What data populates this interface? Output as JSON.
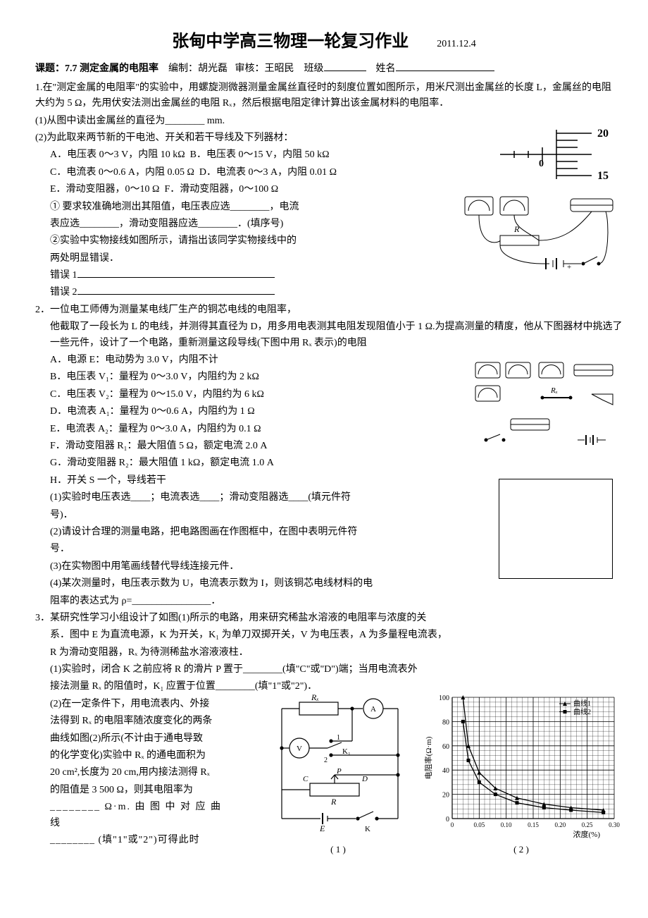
{
  "header": {
    "title": "张甸中学高三物理一轮复习作业",
    "date": "2011.12.4",
    "topic_label": "课题：7.7 测定金属的电阻率",
    "author_label": "编制：",
    "author": "胡光磊",
    "reviewer_label": "审核：",
    "reviewer": "王昭民",
    "class_label": "班级",
    "name_label": "姓名"
  },
  "q1": {
    "intro": "1.在\"测定金属的电阻率\"的实验中，用螺旋测微器测量金属丝直径时的刻度位置如图所示，用米尺测出金属丝的长度 L，金属丝的电阻大约为 5 Ω，先用伏安法测出金属丝的电阻 Rₓ，然后根据电阻定律计算出该金属材料的电阻率．",
    "p1": "(1)从图中读出金属丝的直径为________ mm.",
    "p2_intro": "(2)为此取来两节新的干电池、开关和若干导线及下列器材：",
    "optA": "A．电压表 0～3 V，内阻 10 kΩ",
    "optB": "B．电压表 0～15 V，内阻 50 kΩ",
    "optC": "C．电流表 0～0.6 A，内阻 0.05 Ω",
    "optD": "D．电流表 0～3 A，内阻 0.01 Ω",
    "optE": "E．滑动变阻器，0～10 Ω",
    "optF": "F．滑动变阻器，0～100 Ω",
    "sub1_a": "① 要求较准确地测出其阻值，电压表应选________，电流",
    "sub1_b": "表应选________，滑动变阻器应选________．(填序号)",
    "sub2_a": "②实验中实物接线如图所示，请指出该同学实物接线中的",
    "sub2_b": "两处明显错误．",
    "err1_label": "错误 1",
    "err2_label": "错误 2",
    "micrometer": {
      "top_tick": "20",
      "bottom_tick": "15",
      "main_scale": "0",
      "line_color": "#000000",
      "bg": "#ffffff"
    },
    "circuit_img": {
      "label_R": "R",
      "bg": "#ffffff",
      "stroke": "#000000"
    }
  },
  "q2": {
    "intro_a": "2．一位电工师傅为测量某电线厂生产的铜芯电线的电阻率，",
    "intro_b": "他截取了一段长为 L 的电线，并测得其直径为 D，用多用电表测其电阻发现阻值小于 1 Ω.为提高测量的精度，他从下图器材中挑选了一些元件，设计了一个电路，重新测量这段导线(下图中用 Rₓ 表示)的电阻",
    "optA": "A．电源 E：电动势为 3.0 V，内阻不计",
    "optB": "B．电压表 V₁：量程为 0～3.0 V，内阻约为 2 kΩ",
    "optC": "C．电压表 V₂：量程为 0～15.0 V，内阻约为 6 kΩ",
    "optD": "D．电流表 A₁：量程为 0～0.6 A，内阻约为 1 Ω",
    "optE": "E．电流表 A₂：量程为 0～3.0 A，内阻约为 0.1 Ω",
    "optF": "F．滑动变阻器 R₁：最大阻值 5 Ω，额定电流 2.0 A",
    "optG": "G．滑动变阻器 R₂：最大阻值 1 kΩ，额定电流 1.0 A",
    "optH": "H．开关 S 一个，导线若干",
    "p1_a": "(1)实验时电压表选____；电流表选____；滑动变阻器选____(填元件符",
    "p1_b": "号)．",
    "p2_a": "(2)请设计合理的测量电路，把电路图画在作图框中，在图中表明元件符",
    "p2_b": "号．",
    "p3": "(3)在实物图中用笔画线替代导线连接元件．",
    "p4_a": "(4)某次测量时，电压表示数为 U，电流表示数为 I，则该铜芯电线材料的电",
    "p4_b": "阻率的表达式为 ρ=________________．",
    "components_labels": {
      "rx": "Rₓ"
    }
  },
  "q3": {
    "intro_a": "3．某研究性学习小组设计了如图(1)所示的电路，用来研究稀盐水溶液的电阻率与浓度的关",
    "intro_b": "系．图中 E 为直流电源，K 为开关，K₁ 为单刀双掷开关，V 为电压表，A 为多量程电流表，",
    "intro_c": "R 为滑动变阻器，Rₓ 为待测稀盐水溶液液柱．",
    "p1_a": "(1)实验时，闭合 K 之前应将 R 的滑片 P 置于________(填\"C\"或\"D\")端；当用电流表外",
    "p1_b": "接法测量 Rₓ 的阻值时，K₁ 应置于位置________(填\"1\"或\"2\")．",
    "p2_a": "(2)在一定条件下，用电流表内、外接",
    "p2_b": "法得到 Rₓ 的电阻率随浓度变化的两条",
    "p2_c": "曲线如图(2)所示(不计由于通电导致",
    "p2_d": "的化学变化)实验中 Rₓ 的通电面积为",
    "p2_e": "20 cm²,长度为 20 cm,用内接法测得 Rₓ",
    "p2_f": "的阻值是 3 500 Ω，则其电阻率为",
    "p2_g": "________ Ω·m. 由 图 中 对 应 曲 线",
    "p2_h": "________ (填\"1\"或\"2\")可得此时",
    "circuit": {
      "caption": "( 1 )",
      "labels": {
        "rx": "Rₓ",
        "a": "A",
        "v": "V",
        "k1": "K₁",
        "one": "1",
        "two": "2",
        "c": "C",
        "p": "P",
        "d": "D",
        "r": "R",
        "e": "E",
        "k": "K"
      },
      "stroke": "#000000"
    },
    "chart": {
      "caption": "( 2 )",
      "ylabel": "电阻率(Ω·m)",
      "xlabel": "浓度(%)",
      "legend": [
        "曲线1",
        "曲线2"
      ],
      "ylim": [
        0,
        100
      ],
      "ytick_step": 20,
      "xlim": [
        0,
        0.3
      ],
      "xtick_step": 0.05,
      "yticks": [
        0,
        20,
        40,
        60,
        80,
        100
      ],
      "xticks": [
        "0",
        "0.05",
        "0.10",
        "0.15",
        "0.20",
        "0.25",
        "0.30"
      ],
      "bg": "#ffffff",
      "grid_color": "#000000",
      "curve1": {
        "marker": "triangle",
        "color": "#000000",
        "points": [
          [
            0.02,
            100
          ],
          [
            0.03,
            60
          ],
          [
            0.05,
            38
          ],
          [
            0.08,
            25
          ],
          [
            0.12,
            17
          ],
          [
            0.17,
            12
          ],
          [
            0.22,
            9
          ],
          [
            0.28,
            7
          ]
        ]
      },
      "curve2": {
        "marker": "square",
        "color": "#000000",
        "points": [
          [
            0.02,
            80
          ],
          [
            0.03,
            48
          ],
          [
            0.05,
            30
          ],
          [
            0.08,
            20
          ],
          [
            0.12,
            13
          ],
          [
            0.17,
            9
          ],
          [
            0.22,
            7
          ],
          [
            0.28,
            5
          ]
        ]
      }
    }
  }
}
